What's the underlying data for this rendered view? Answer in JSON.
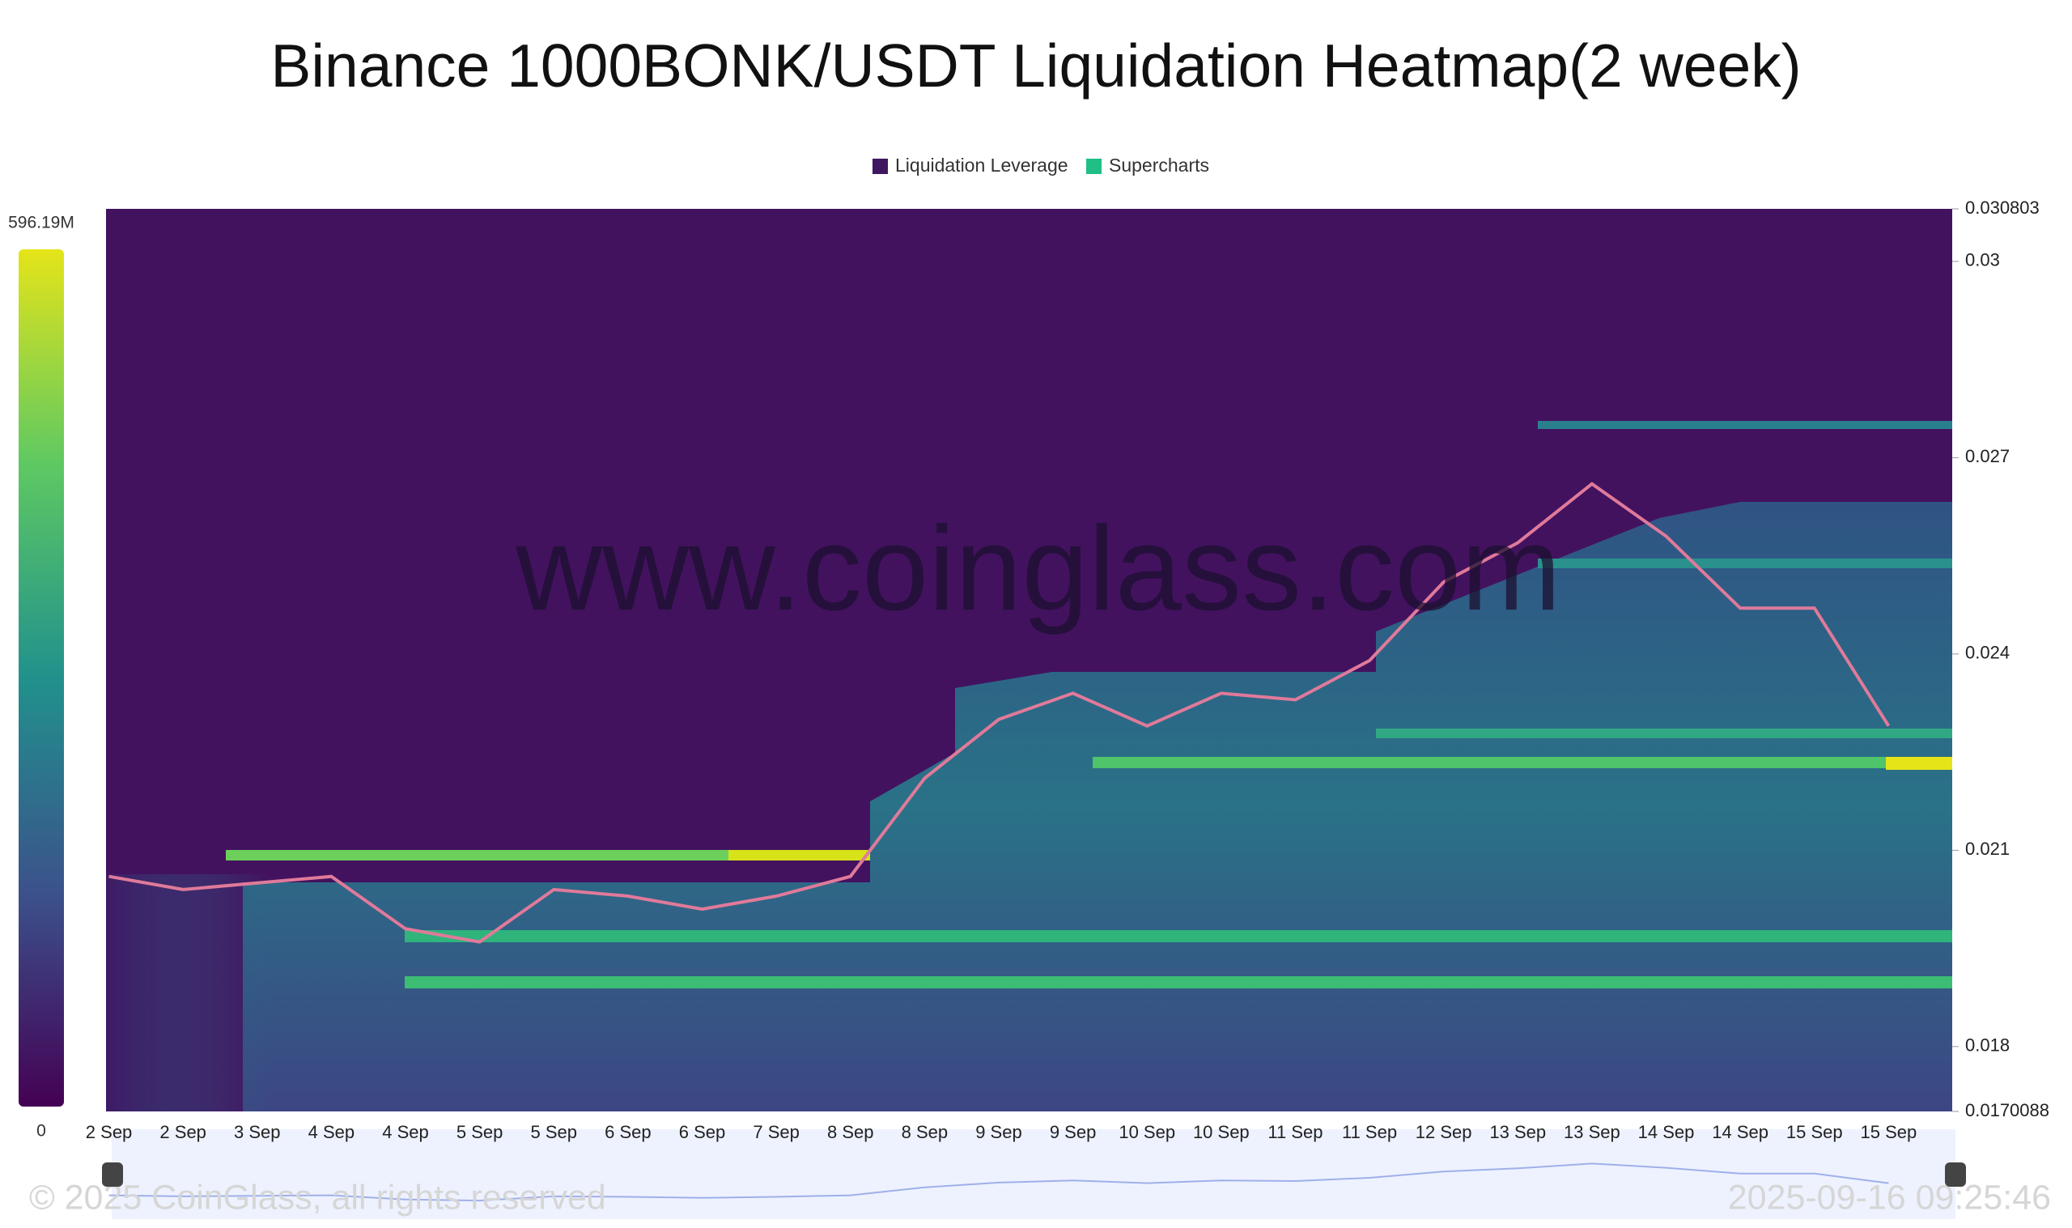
{
  "chart_data": {
    "type": "heatmap",
    "title": "Binance 1000BONK/USDT Liquidation Heatmap(2 week)",
    "legend": [
      {
        "name": "Liquidation Leverage",
        "color": "#3f1660"
      },
      {
        "name": "Supercharts",
        "color": "#1fbf85"
      }
    ],
    "categories": [
      "2 Sep",
      "2 Sep",
      "3 Sep",
      "4 Sep",
      "4 Sep",
      "5 Sep",
      "5 Sep",
      "6 Sep",
      "6 Sep",
      "7 Sep",
      "8 Sep",
      "8 Sep",
      "9 Sep",
      "9 Sep",
      "10 Sep",
      "10 Sep",
      "11 Sep",
      "11 Sep",
      "12 Sep",
      "13 Sep",
      "13 Sep",
      "14 Sep",
      "14 Sep",
      "15 Sep",
      "15 Sep"
    ],
    "price": [
      0.0206,
      0.0204,
      0.0205,
      0.0206,
      0.0198,
      0.0196,
      0.0204,
      0.0203,
      0.0201,
      0.0203,
      0.0206,
      0.0221,
      0.023,
      0.0234,
      0.0229,
      0.0234,
      0.0233,
      0.0239,
      0.0251,
      0.0257,
      0.0266,
      0.0258,
      0.0247,
      0.0247,
      0.0229
    ],
    "price_color": "#e07a9a",
    "ylim": [
      0.0170088,
      0.030803
    ],
    "yticks": [
      0.030803,
      0.03,
      0.027,
      0.024,
      0.021,
      0.018,
      0.0170088
    ],
    "colorbar": {
      "range": [
        0,
        {
          "value": 596190000,
          "label": "596.19M"
        }
      ]
    },
    "watermark": "www.coinglass.com",
    "copyright": "© 2025 CoinGlass, all rights reserved",
    "timestamp": "2025-09-16 09:25:46"
  }
}
